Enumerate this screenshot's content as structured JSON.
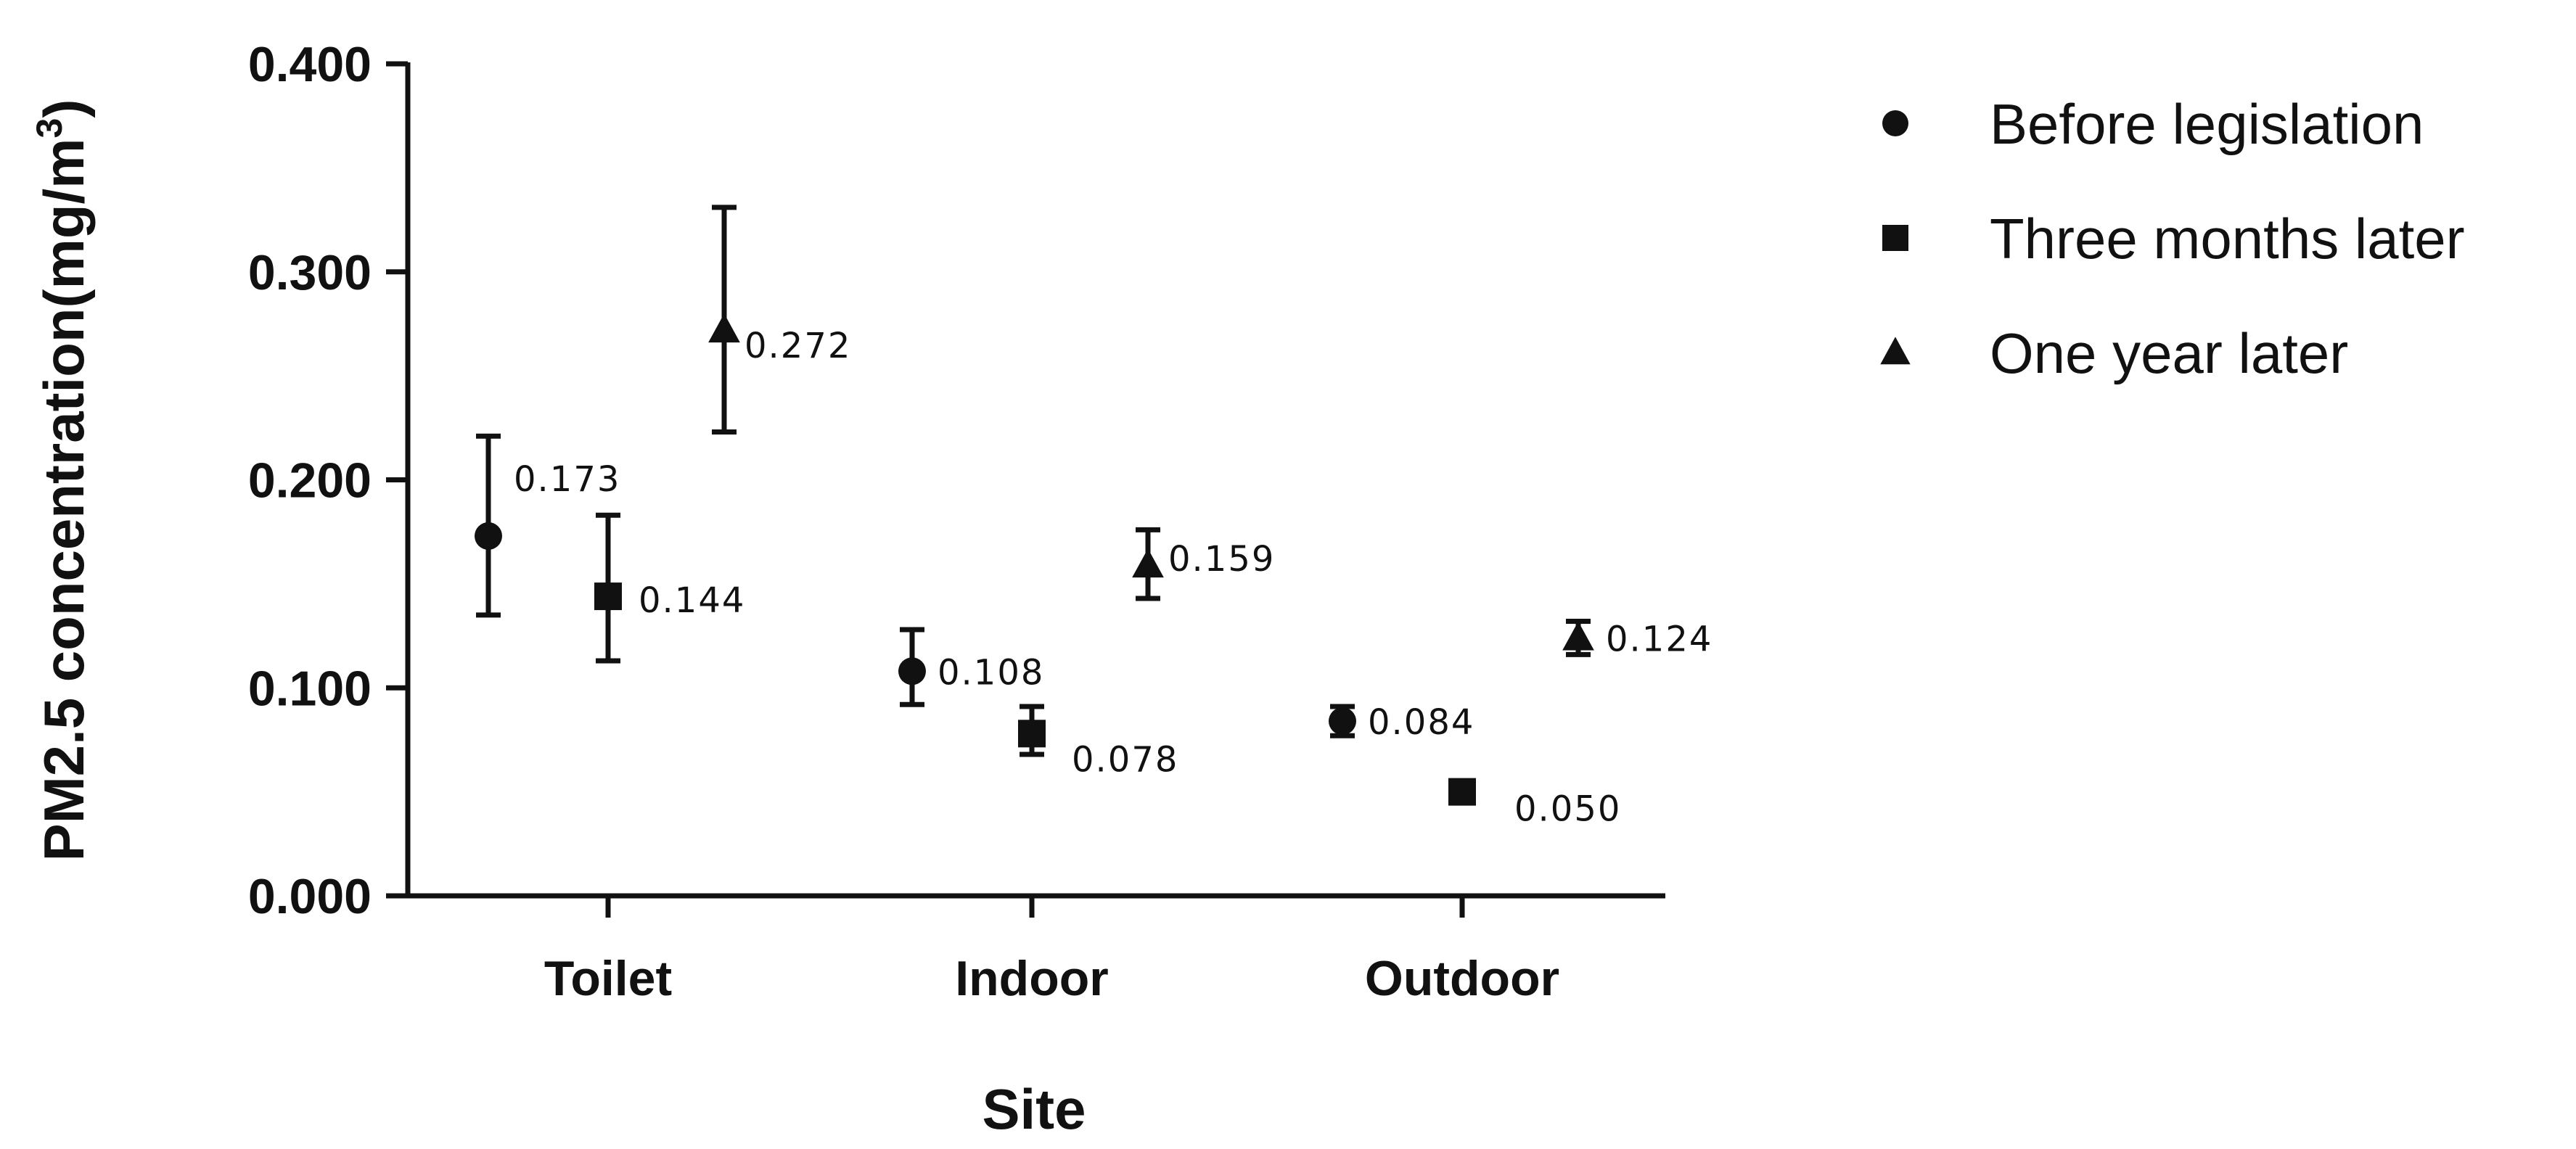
{
  "chart_data": {
    "type": "scatter",
    "xlabel": "Site",
    "ylabel": "PM2.5 concentration(mg/m",
    "ylabel_superscript": "3",
    "ylabel_close": ")",
    "categories": [
      "Toilet",
      "Indoor",
      "Outdoor"
    ],
    "ylim": [
      0,
      0.4
    ],
    "yticks": [
      "0.000",
      "0.100",
      "0.200",
      "0.300",
      "0.400"
    ],
    "grid": false,
    "legend_position": "right",
    "series": [
      {
        "name": "Before legislation",
        "marker": "circle",
        "values": [
          0.173,
          0.108,
          0.084
        ],
        "labels": [
          "0.173",
          "0.108",
          "0.084"
        ],
        "err_low": [
          0.135,
          0.092,
          0.077
        ],
        "err_high": [
          0.221,
          0.128,
          0.091
        ]
      },
      {
        "name": "Three months later",
        "marker": "square",
        "values": [
          0.144,
          0.078,
          0.05
        ],
        "labels": [
          "0.144",
          "0.078",
          "0.050"
        ],
        "err_low": [
          0.113,
          0.068,
          0.05
        ],
        "err_high": [
          0.183,
          0.091,
          0.05
        ]
      },
      {
        "name": "One year later",
        "marker": "triangle",
        "values": [
          0.272,
          0.159,
          0.124
        ],
        "labels": [
          "0.272",
          "0.159",
          "0.124"
        ],
        "err_low": [
          0.223,
          0.143,
          0.116
        ],
        "err_high": [
          0.331,
          0.176,
          0.132
        ]
      }
    ],
    "color": "#111111"
  }
}
